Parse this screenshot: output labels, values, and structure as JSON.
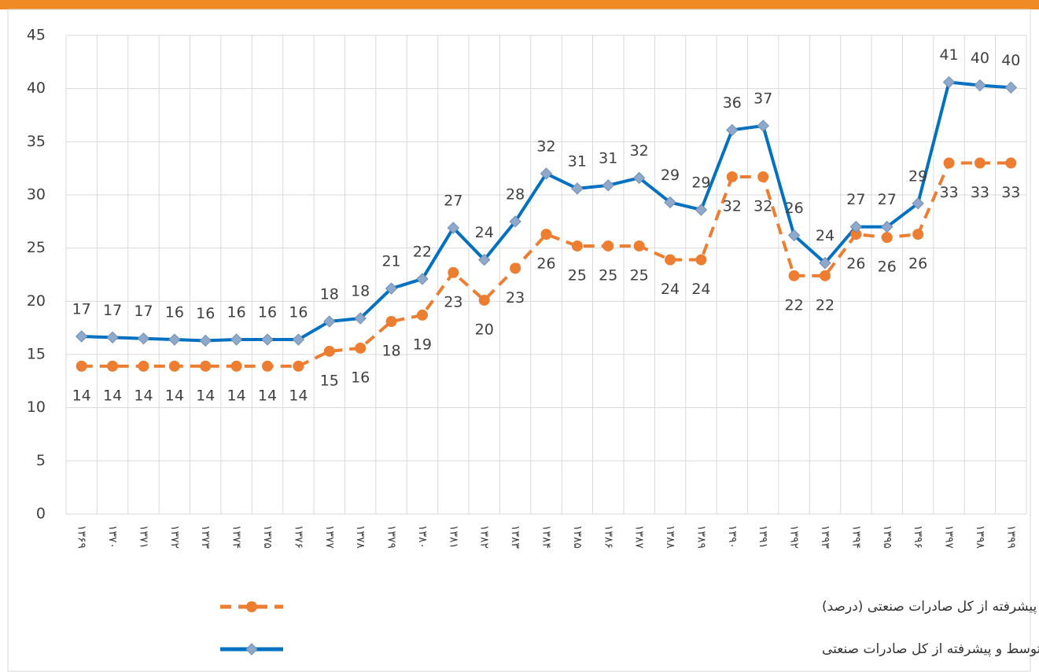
{
  "chart_data": {
    "type": "line",
    "categories": [
      "۱۳۶۹",
      "۱۳۷۰",
      "۱۳۷۱",
      "۱۳۷۲",
      "۱۳۷۳",
      "۱۳۷۴",
      "۱۳۷۵",
      "۱۳۷۶",
      "۱۳۷۷",
      "۱۳۷۸",
      "۱۳۷۹",
      "۱۳۸۰",
      "۱۳۸۱",
      "۱۳۸۲",
      "۱۳۸۳",
      "۱۳۸۴",
      "۱۳۸۵",
      "۱۳۸۶",
      "۱۳۸۷",
      "۱۳۸۸",
      "۱۳۸۹",
      "۱۳۹۰",
      "۱۳۹۱",
      "۱۳۹۲",
      "۱۳۹۳",
      "۱۳۹۴",
      "۱۳۹۵",
      "۱۳۹۶",
      "۱۳۹۷",
      "۱۳۹۸",
      "۱۳۹۹"
    ],
    "series": [
      {
        "name": "سهم صادرات تولیدات با فناوری متوسط و پیشرفته از کل صادرات صنعتی (درصد)",
        "color": "#ed7d31",
        "style": "dashed",
        "marker": "circle",
        "values": [
          13.9,
          13.9,
          13.9,
          13.9,
          13.9,
          13.9,
          13.9,
          13.9,
          15.3,
          15.6,
          18.1,
          18.7,
          22.7,
          20.1,
          23.1,
          26.3,
          25.2,
          25.2,
          25.2,
          23.9,
          23.9,
          31.7,
          31.7,
          22.4,
          22.4,
          26.3,
          26.0,
          26.3,
          33.0,
          33.0,
          33.0
        ],
        "value_labels": [
          "14",
          "14",
          "14",
          "14",
          "14",
          "14",
          "14",
          "14",
          "15",
          "16",
          "18",
          "19",
          "23",
          "20",
          "23",
          "26",
          "25",
          "25",
          "25",
          "24",
          "24",
          "32",
          "32",
          "22",
          "22",
          "26",
          "26",
          "26",
          "33",
          "33",
          "33"
        ]
      },
      {
        "name": "شاخص سهم صادرات تولیدات با فناوری متوسط و پیشرفته از کل صادرات صنعتی",
        "color": "#0070c0",
        "style": "solid",
        "marker": "diamond",
        "values": [
          16.7,
          16.6,
          16.5,
          16.4,
          16.3,
          16.4,
          16.4,
          16.4,
          18.1,
          18.4,
          21.2,
          22.1,
          26.9,
          23.9,
          27.5,
          32.0,
          30.6,
          30.9,
          31.6,
          29.3,
          28.6,
          36.1,
          36.5,
          26.2,
          23.6,
          27.0,
          27.0,
          29.2,
          40.6,
          40.3,
          40.1
        ],
        "value_labels": [
          "17",
          "17",
          "17",
          "16",
          "16",
          "16",
          "16",
          "16",
          "18",
          "18",
          "21",
          "22",
          "27",
          "24",
          "28",
          "32",
          "31",
          "31",
          "32",
          "29",
          "29",
          "36",
          "37",
          "26",
          "24",
          "27",
          "27",
          "29",
          "41",
          "40",
          "40"
        ]
      }
    ],
    "ylim": [
      0,
      45
    ],
    "yticks": [
      0,
      5,
      10,
      15,
      20,
      25,
      30,
      35,
      40,
      45
    ],
    "grid": true
  }
}
